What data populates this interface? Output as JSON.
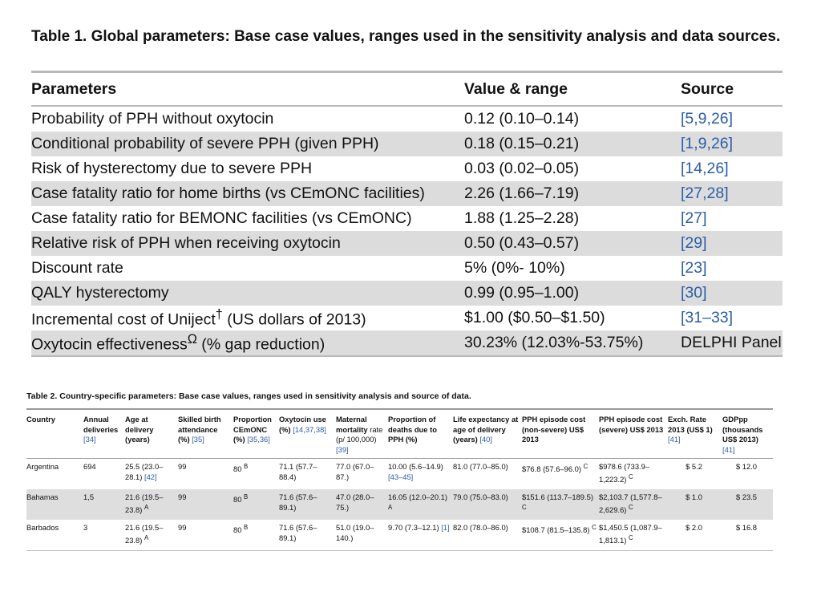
{
  "table1": {
    "caption": "Table 1.  Global parameters: Base case values, ranges used in the sensitivity analysis and data sources.",
    "headers": [
      "Parameters",
      "Value & range",
      "Source"
    ],
    "rows": [
      {
        "param": "Probability of PPH without oxytocin",
        "sup": "",
        "param_tail": "",
        "value": "0.12 (0.10–0.14)",
        "source": "[5,9,26]"
      },
      {
        "param": "Conditional probability of severe PPH (given PPH)",
        "sup": "",
        "param_tail": "",
        "value": "0.18 (0.15–0.21)",
        "source": "[1,9,26]"
      },
      {
        "param": "Risk of hysterectomy due to severe PPH",
        "sup": "",
        "param_tail": "",
        "value": "0.03 (0.02–0.05)",
        "source": "[14,26]"
      },
      {
        "param": "Case fatality ratio for home births (vs CEmONC facilities)",
        "sup": "",
        "param_tail": "",
        "value": "2.26 (1.66–7.19)",
        "source": "[27,28]"
      },
      {
        "param": "Case fatality ratio for BEMONC facilities (vs CEmONC)",
        "sup": "",
        "param_tail": "",
        "value": "1.88 (1.25–2.28)",
        "source": "[27]"
      },
      {
        "param": "Relative risk of PPH when receiving oxytocin",
        "sup": "",
        "param_tail": "",
        "value": "0.50 (0.43–0.57)",
        "source": "[29]"
      },
      {
        "param": "Discount rate",
        "sup": "",
        "param_tail": "",
        "value": "5% (0%- 10%)",
        "source": "[23]"
      },
      {
        "param": "QALY hysterectomy",
        "sup": "",
        "param_tail": "",
        "value": "0.99 (0.95–1.00)",
        "source": "[30]"
      },
      {
        "param": "Incremental cost of Uniject",
        "sup": "†",
        "param_tail": " (US dollars of 2013)",
        "value": "$1.00 ($0.50–$1.50)",
        "source": "[31–33]"
      },
      {
        "param": "Oxytocin effectiveness",
        "sup": "Ω",
        "param_tail": " (% gap reduction)",
        "value": "30.23% (12.03%-53.75%)",
        "source": "DELPHI Panel"
      }
    ]
  },
  "table2": {
    "caption": "Table 2.  Country-specific parameters: Base case values, ranges used in sensitivity analysis and source of data.",
    "headers": [
      {
        "main": "Country",
        "note": "",
        "ref": ""
      },
      {
        "main": "Annual deliveries",
        "note": "",
        "ref": "[34]"
      },
      {
        "main": "Age at delivery (years)",
        "note": "",
        "ref": ""
      },
      {
        "main": "Skilled birth attendance (%)",
        "note": "",
        "ref": "[35]"
      },
      {
        "main": "Proportion CEmONC (%)",
        "note": "",
        "ref": "[35,36]"
      },
      {
        "main": "Oxytocin use (%)",
        "note": "",
        "ref": "[14,37,38]"
      },
      {
        "main": "Maternal mortality",
        "note": "rate (p/ 100,000)",
        "ref": "[39]"
      },
      {
        "main": "Proportion of deaths due to PPH (%)",
        "note": "",
        "ref": ""
      },
      {
        "main": "Life expectancy at age of delivery (years)",
        "note": "",
        "ref": "[40]"
      },
      {
        "main": "PPH episode cost (non-severe) US$ 2013",
        "note": "",
        "ref": ""
      },
      {
        "main": "PPH episode cost (severe) US$ 2013",
        "note": "",
        "ref": ""
      },
      {
        "main": "Exch. Rate 2013 (US$ 1)",
        "note": "",
        "ref": "[41]"
      },
      {
        "main": "GDPpp (thousands US$ 2013)",
        "note": "",
        "ref": "[41]"
      }
    ],
    "rows": [
      {
        "country": "Argentina",
        "deliveries": "694",
        "age": "25.5 (23.0–28.1)",
        "age_sup": "",
        "age_ref": "[42]",
        "sba": "99",
        "cemonc": "80",
        "cemonc_sup": "B",
        "oxytocin": "71.1 (57.7–88.4)",
        "mmr": "77.0 (67.0–87.)",
        "pph_deaths": "10.00 (5.6–14.9)",
        "pph_sup": "",
        "pph_ref": "[43–45]",
        "life": "81.0 (77.0–85.0)",
        "cost_ns": "$76.8 (57.6–96.0)",
        "cost_ns_sup": "C",
        "cost_s": "$978.6 (733.9–1,223.2)",
        "cost_s_sup": "C",
        "exch": "$ 5.2",
        "gdp": "$ 12.0"
      },
      {
        "country": "Bahamas",
        "deliveries": "1,5",
        "age": "21.6 (19.5–23.8)",
        "age_sup": "A",
        "age_ref": "",
        "sba": "99",
        "cemonc": "80",
        "cemonc_sup": "B",
        "oxytocin": "71.6 (57.6–89.1)",
        "mmr": "47.0 (28.0–75.)",
        "pph_deaths": "16.05 (12.0–20.1)",
        "pph_sup": "A",
        "pph_ref": "",
        "life": "79.0 (75.0–83.0)",
        "cost_ns": "$151.6 (113.7–189.5)",
        "cost_ns_sup": "C",
        "cost_s": "$2,103.7 (1,577.8–2,629.6)",
        "cost_s_sup": "C",
        "exch": "$ 1.0",
        "gdp": "$ 23.5"
      },
      {
        "country": "Barbados",
        "deliveries": "3",
        "age": "21.6 (19.5–23.8)",
        "age_sup": "A",
        "age_ref": "",
        "sba": "99",
        "cemonc": "80",
        "cemonc_sup": "B",
        "oxytocin": "71.6 (57.6–89.1)",
        "mmr": "51.0 (19.0–140.)",
        "pph_deaths": "9.70 (7.3–12.1)",
        "pph_sup": "",
        "pph_ref": "[1]",
        "life": "82.0 (78.0–86.0)",
        "cost_ns": "$108.7 (81.5–135.8)",
        "cost_ns_sup": "C",
        "cost_s": "$1,450.5 (1,087.9–1,813.1)",
        "cost_s_sup": "C",
        "exch": "$ 2.0",
        "gdp": "$ 16.8"
      }
    ]
  }
}
